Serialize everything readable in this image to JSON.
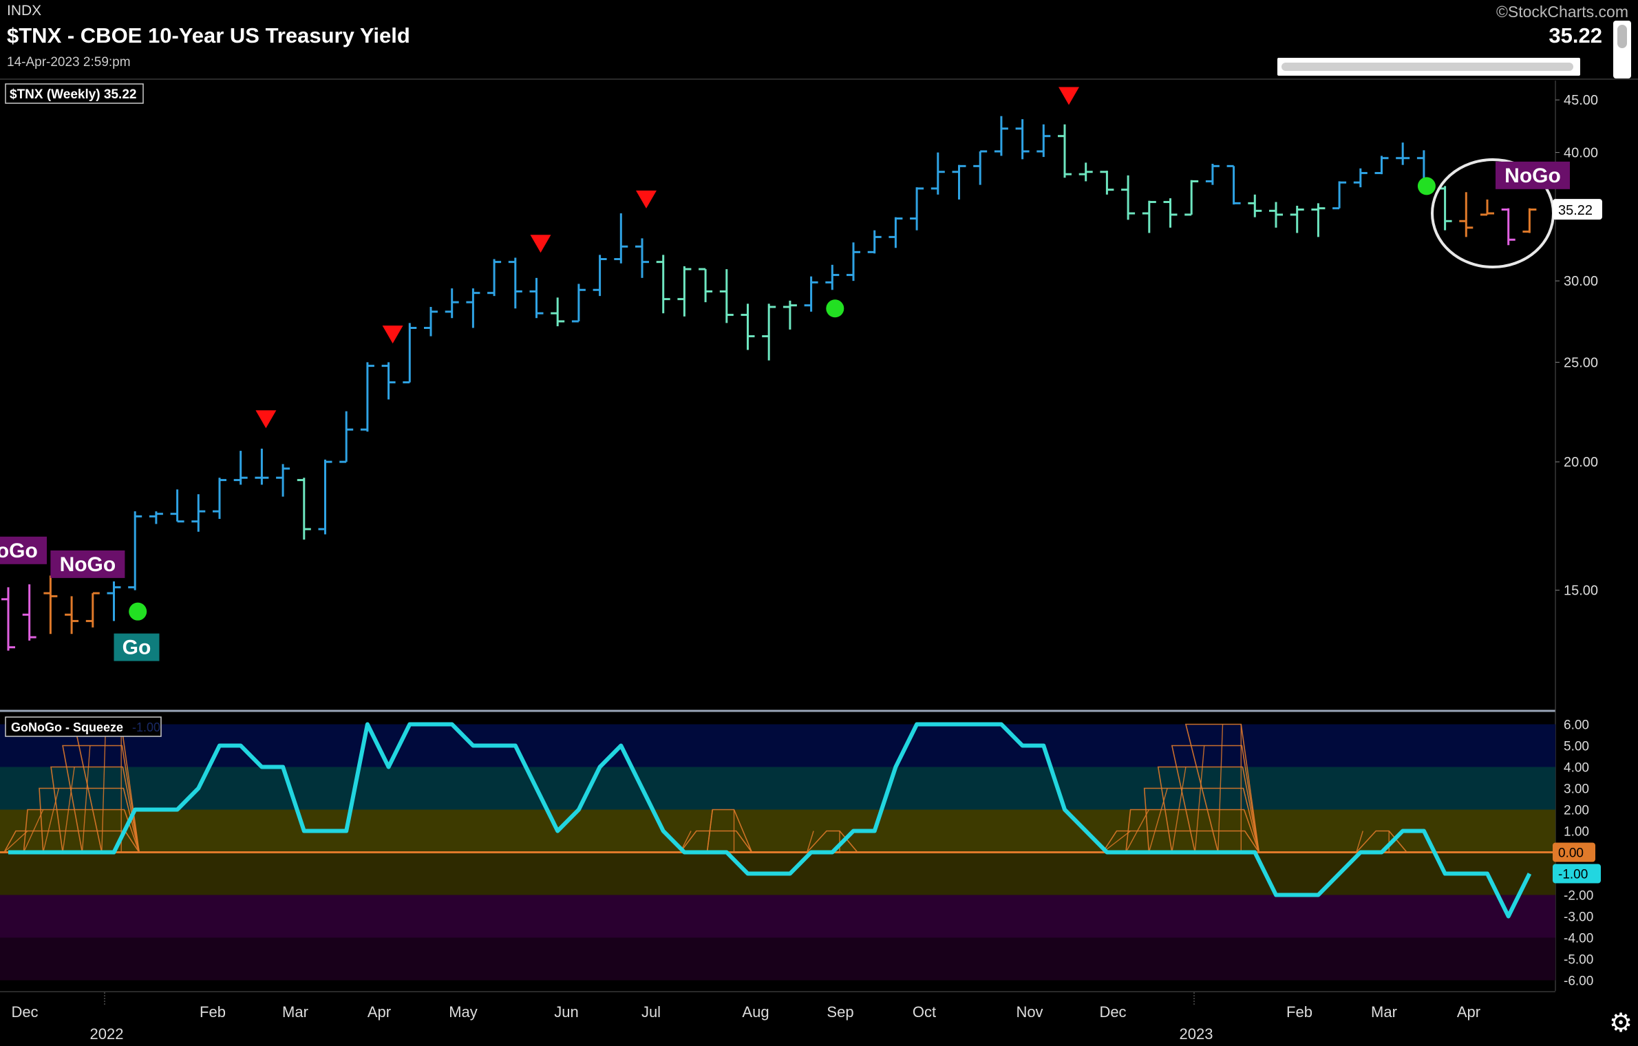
{
  "header": {
    "exchange": "INDX",
    "title": "$TNX - CBOE 10-Year US Treasury Yield",
    "datetime": "14-Apr-2023 2:59:pm",
    "brand": "©StockCharts.com",
    "last_value": "35.22"
  },
  "chart_data": [
    {
      "type": "ohlc",
      "legend": "$TNX (Weekly) 35.22",
      "scale": "log",
      "ylim": [
        11.5,
        47
      ],
      "y_ticks": [
        "45.00",
        "40.00",
        "30.00",
        "25.00",
        "20.00",
        "15.00"
      ],
      "y_tick_values": [
        45,
        40,
        30,
        25,
        20,
        15
      ],
      "last_label": "35.22",
      "x_labels": [
        "Dec",
        "Feb",
        "Mar",
        "Apr",
        "May",
        "Jun",
        "Jul",
        "Aug",
        "Sep",
        "Oct",
        "Nov",
        "Dec",
        "Feb",
        "Mar",
        "Apr"
      ],
      "year_labels": [
        "2022",
        "2023"
      ],
      "colors": {
        "strong_go": "#2fa3e4",
        "weak_go": "#6ee6c0",
        "nogo": "#e060e0",
        "weak_nogo": "#e07a2a"
      },
      "bars": [
        {
          "date": "2021-11-26",
          "o": 14.7,
          "h": 15.1,
          "l": 13.1,
          "c": 13.2,
          "color": "#e060e0"
        },
        {
          "date": "2021-12-03",
          "o": 14.2,
          "h": 15.2,
          "l": 13.4,
          "c": 13.5,
          "color": "#e060e0"
        },
        {
          "date": "2021-12-10",
          "o": 14.9,
          "h": 15.5,
          "l": 13.6,
          "c": 14.8,
          "color": "#e07a2a"
        },
        {
          "date": "2021-12-17",
          "o": 14.2,
          "h": 14.8,
          "l": 13.6,
          "c": 14.0,
          "color": "#e07a2a"
        },
        {
          "date": "2021-12-24",
          "o": 14.0,
          "h": 14.9,
          "l": 13.8,
          "c": 14.9,
          "color": "#e07a2a"
        },
        {
          "date": "2021-12-31",
          "o": 14.9,
          "h": 15.3,
          "l": 14.0,
          "c": 15.1,
          "color": "#2fa3e4"
        },
        {
          "date": "2022-01-07",
          "o": 15.1,
          "h": 17.9,
          "l": 15.0,
          "c": 17.7,
          "color": "#2fa3e4"
        },
        {
          "date": "2022-01-14",
          "o": 17.7,
          "h": 17.9,
          "l": 17.4,
          "c": 17.8,
          "color": "#2fa3e4"
        },
        {
          "date": "2022-01-21",
          "o": 17.8,
          "h": 18.8,
          "l": 17.5,
          "c": 17.5,
          "color": "#2fa3e4"
        },
        {
          "date": "2022-01-28",
          "o": 17.5,
          "h": 18.6,
          "l": 17.1,
          "c": 17.9,
          "color": "#2fa3e4"
        },
        {
          "date": "2022-02-04",
          "o": 17.9,
          "h": 19.3,
          "l": 17.6,
          "c": 19.2,
          "color": "#2fa3e4"
        },
        {
          "date": "2022-02-11",
          "o": 19.2,
          "h": 20.5,
          "l": 19.0,
          "c": 19.3,
          "color": "#2fa3e4"
        },
        {
          "date": "2022-02-18",
          "o": 19.3,
          "h": 20.6,
          "l": 19.0,
          "c": 19.3,
          "color": "#2fa3e4"
        },
        {
          "date": "2022-02-25",
          "o": 19.3,
          "h": 19.9,
          "l": 18.5,
          "c": 19.7,
          "color": "#2fa3e4"
        },
        {
          "date": "2022-03-04",
          "o": 19.2,
          "h": 19.3,
          "l": 16.8,
          "c": 17.2,
          "color": "#6ee6c0"
        },
        {
          "date": "2022-03-11",
          "o": 17.2,
          "h": 20.1,
          "l": 17.0,
          "c": 20.0,
          "color": "#2fa3e4"
        },
        {
          "date": "2022-03-18",
          "o": 20.0,
          "h": 22.4,
          "l": 20.0,
          "c": 21.5,
          "color": "#2fa3e4"
        },
        {
          "date": "2022-03-25",
          "o": 21.5,
          "h": 25.0,
          "l": 21.4,
          "c": 24.8,
          "color": "#2fa3e4"
        },
        {
          "date": "2022-04-01",
          "o": 24.8,
          "h": 25.0,
          "l": 23.0,
          "c": 23.9,
          "color": "#2fa3e4"
        },
        {
          "date": "2022-04-08",
          "o": 23.9,
          "h": 27.3,
          "l": 23.9,
          "c": 27.0,
          "color": "#2fa3e4"
        },
        {
          "date": "2022-04-15",
          "o": 27.0,
          "h": 28.3,
          "l": 26.5,
          "c": 28.0,
          "color": "#2fa3e4"
        },
        {
          "date": "2022-04-22",
          "o": 28.0,
          "h": 29.5,
          "l": 27.6,
          "c": 28.6,
          "color": "#2fa3e4"
        },
        {
          "date": "2022-04-29",
          "o": 28.6,
          "h": 29.5,
          "l": 27.0,
          "c": 29.2,
          "color": "#2fa3e4"
        },
        {
          "date": "2022-05-06",
          "o": 29.2,
          "h": 31.5,
          "l": 29.0,
          "c": 31.3,
          "color": "#2fa3e4"
        },
        {
          "date": "2022-05-13",
          "o": 31.3,
          "h": 31.6,
          "l": 28.2,
          "c": 29.3,
          "color": "#2fa3e4"
        },
        {
          "date": "2022-05-20",
          "o": 29.3,
          "h": 30.2,
          "l": 27.6,
          "c": 27.9,
          "color": "#2fa3e4"
        },
        {
          "date": "2022-05-27",
          "o": 27.9,
          "h": 28.9,
          "l": 27.1,
          "c": 27.4,
          "color": "#6ee6c0"
        },
        {
          "date": "2022-06-03",
          "o": 27.4,
          "h": 29.8,
          "l": 27.4,
          "c": 29.4,
          "color": "#2fa3e4"
        },
        {
          "date": "2022-06-10",
          "o": 29.4,
          "h": 31.8,
          "l": 29.0,
          "c": 31.5,
          "color": "#2fa3e4"
        },
        {
          "date": "2022-06-17",
          "o": 31.5,
          "h": 34.9,
          "l": 31.2,
          "c": 32.4,
          "color": "#2fa3e4"
        },
        {
          "date": "2022-06-24",
          "o": 32.4,
          "h": 33.0,
          "l": 30.2,
          "c": 31.3,
          "color": "#2fa3e4"
        },
        {
          "date": "2022-07-01",
          "o": 31.3,
          "h": 31.8,
          "l": 27.9,
          "c": 28.8,
          "color": "#6ee6c0"
        },
        {
          "date": "2022-07-08",
          "o": 28.8,
          "h": 31.0,
          "l": 27.7,
          "c": 30.8,
          "color": "#6ee6c0"
        },
        {
          "date": "2022-07-15",
          "o": 30.8,
          "h": 30.8,
          "l": 28.6,
          "c": 29.3,
          "color": "#6ee6c0"
        },
        {
          "date": "2022-07-22",
          "o": 29.3,
          "h": 30.8,
          "l": 27.3,
          "c": 27.8,
          "color": "#6ee6c0"
        },
        {
          "date": "2022-07-29",
          "o": 27.8,
          "h": 28.5,
          "l": 25.7,
          "c": 26.5,
          "color": "#6ee6c0"
        },
        {
          "date": "2022-08-05",
          "o": 26.5,
          "h": 28.5,
          "l": 25.1,
          "c": 28.3,
          "color": "#6ee6c0"
        },
        {
          "date": "2022-08-12",
          "o": 28.3,
          "h": 28.7,
          "l": 26.9,
          "c": 28.4,
          "color": "#6ee6c0"
        },
        {
          "date": "2022-08-19",
          "o": 28.4,
          "h": 30.3,
          "l": 28.0,
          "c": 29.9,
          "color": "#2fa3e4"
        },
        {
          "date": "2022-08-26",
          "o": 29.9,
          "h": 31.1,
          "l": 29.4,
          "c": 30.4,
          "color": "#2fa3e4"
        },
        {
          "date": "2022-09-02",
          "o": 30.4,
          "h": 32.7,
          "l": 30.0,
          "c": 32.0,
          "color": "#2fa3e4"
        },
        {
          "date": "2022-09-09",
          "o": 32.0,
          "h": 33.6,
          "l": 31.9,
          "c": 33.1,
          "color": "#2fa3e4"
        },
        {
          "date": "2022-09-16",
          "o": 33.1,
          "h": 34.6,
          "l": 32.3,
          "c": 34.5,
          "color": "#2fa3e4"
        },
        {
          "date": "2022-09-23",
          "o": 34.5,
          "h": 37.0,
          "l": 33.6,
          "c": 36.9,
          "color": "#2fa3e4"
        },
        {
          "date": "2022-09-30",
          "o": 36.9,
          "h": 40.0,
          "l": 36.4,
          "c": 38.3,
          "color": "#2fa3e4"
        },
        {
          "date": "2022-10-07",
          "o": 38.3,
          "h": 38.9,
          "l": 36.0,
          "c": 38.8,
          "color": "#2fa3e4"
        },
        {
          "date": "2022-10-14",
          "o": 38.8,
          "h": 40.1,
          "l": 37.2,
          "c": 40.1,
          "color": "#2fa3e4"
        },
        {
          "date": "2022-10-21",
          "o": 40.1,
          "h": 43.4,
          "l": 39.7,
          "c": 42.2,
          "color": "#2fa3e4"
        },
        {
          "date": "2022-10-28",
          "o": 42.2,
          "h": 43.1,
          "l": 39.4,
          "c": 40.1,
          "color": "#2fa3e4"
        },
        {
          "date": "2022-11-04",
          "o": 40.1,
          "h": 42.6,
          "l": 39.6,
          "c": 41.5,
          "color": "#2fa3e4"
        },
        {
          "date": "2022-11-11",
          "o": 41.5,
          "h": 42.6,
          "l": 37.8,
          "c": 38.1,
          "color": "#6ee6c0"
        },
        {
          "date": "2022-11-18",
          "o": 38.1,
          "h": 39.1,
          "l": 37.5,
          "c": 38.3,
          "color": "#6ee6c0"
        },
        {
          "date": "2022-11-25",
          "o": 38.3,
          "h": 38.4,
          "l": 36.4,
          "c": 36.8,
          "color": "#6ee6c0"
        },
        {
          "date": "2022-12-02",
          "o": 36.8,
          "h": 38.0,
          "l": 34.4,
          "c": 34.9,
          "color": "#6ee6c0"
        },
        {
          "date": "2022-12-09",
          "o": 34.9,
          "h": 35.9,
          "l": 33.4,
          "c": 35.8,
          "color": "#6ee6c0"
        },
        {
          "date": "2022-12-16",
          "o": 35.8,
          "h": 36.1,
          "l": 33.8,
          "c": 34.8,
          "color": "#6ee6c0"
        },
        {
          "date": "2022-12-23",
          "o": 34.8,
          "h": 37.6,
          "l": 34.8,
          "c": 37.5,
          "color": "#6ee6c0"
        },
        {
          "date": "2022-12-30",
          "o": 37.5,
          "h": 39.0,
          "l": 37.2,
          "c": 38.8,
          "color": "#2fa3e4"
        },
        {
          "date": "2023-01-06",
          "o": 38.8,
          "h": 38.8,
          "l": 35.6,
          "c": 35.7,
          "color": "#2fa3e4"
        },
        {
          "date": "2023-01-13",
          "o": 35.7,
          "h": 36.4,
          "l": 34.6,
          "c": 35.1,
          "color": "#6ee6c0"
        },
        {
          "date": "2023-01-20",
          "o": 35.1,
          "h": 35.8,
          "l": 33.8,
          "c": 34.8,
          "color": "#6ee6c0"
        },
        {
          "date": "2023-01-27",
          "o": 34.8,
          "h": 35.5,
          "l": 33.4,
          "c": 35.2,
          "color": "#6ee6c0"
        },
        {
          "date": "2023-02-03",
          "o": 35.2,
          "h": 35.7,
          "l": 33.1,
          "c": 35.3,
          "color": "#6ee6c0"
        },
        {
          "date": "2023-02-10",
          "o": 35.3,
          "h": 37.5,
          "l": 35.3,
          "c": 37.4,
          "color": "#2fa3e4"
        },
        {
          "date": "2023-02-17",
          "o": 37.4,
          "h": 38.6,
          "l": 37.0,
          "c": 38.2,
          "color": "#2fa3e4"
        },
        {
          "date": "2023-02-24",
          "o": 38.2,
          "h": 39.7,
          "l": 38.1,
          "c": 39.5,
          "color": "#2fa3e4"
        },
        {
          "date": "2023-03-03",
          "o": 39.5,
          "h": 40.9,
          "l": 38.9,
          "c": 39.5,
          "color": "#2fa3e4"
        },
        {
          "date": "2023-03-10",
          "o": 39.5,
          "h": 40.2,
          "l": 36.9,
          "c": 36.9,
          "color": "#2fa3e4"
        },
        {
          "date": "2023-03-17",
          "o": 36.9,
          "h": 37.1,
          "l": 33.6,
          "c": 34.3,
          "color": "#6ee6c0"
        },
        {
          "date": "2023-03-24",
          "o": 34.3,
          "h": 36.6,
          "l": 33.1,
          "c": 33.8,
          "color": "#e07a2a"
        },
        {
          "date": "2023-03-31",
          "o": 34.8,
          "h": 36.0,
          "l": 34.8,
          "c": 34.9,
          "color": "#e07a2a"
        },
        {
          "date": "2023-04-07",
          "o": 35.2,
          "h": 35.3,
          "l": 32.5,
          "c": 32.9,
          "color": "#e060e0"
        },
        {
          "date": "2023-04-14",
          "o": 33.5,
          "h": 35.3,
          "l": 33.4,
          "c": 35.2,
          "color": "#e07a2a"
        }
      ],
      "annotations": [
        {
          "text": "NoGo",
          "date": "2021-11-26",
          "value": 16.4
        },
        {
          "text": "NoGo",
          "date": "2021-12-10",
          "value": 15.9
        },
        {
          "text": "Go",
          "date": "2021-12-31",
          "value": 13.2
        },
        {
          "text": "NoGo",
          "date": "2023-03-31",
          "value": 38.0
        }
      ],
      "go_dots": [
        {
          "date": "2022-01-07",
          "value": 14.3
        },
        {
          "date": "2022-08-26",
          "value": 28.2
        },
        {
          "date": "2023-03-10",
          "value": 37.1
        }
      ],
      "nogo_triangles": [
        {
          "date": "2022-02-18",
          "value": 22.0
        },
        {
          "date": "2022-04-01",
          "value": 26.6
        },
        {
          "date": "2022-05-20",
          "value": 32.6
        },
        {
          "date": "2022-06-24",
          "value": 36.0
        },
        {
          "date": "2022-11-11",
          "value": 45.4
        }
      ]
    },
    {
      "type": "line",
      "legend": "GoNoGo - Squeeze",
      "legend_value": "-1.00",
      "ylim": [
        -6.5,
        6.5
      ],
      "y_ticks": [
        "6.00",
        "5.00",
        "4.00",
        "3.00",
        "2.00",
        "1.00",
        "0.00",
        "-1.00",
        "-2.00",
        "-3.00",
        "-4.00",
        "-5.00",
        "-6.00"
      ],
      "y_tick_values": [
        6,
        5,
        4,
        3,
        2,
        1,
        0,
        -1,
        -2,
        -3,
        -4,
        -5,
        -6
      ],
      "zero_label": "0.00",
      "last_label": "-1.00",
      "line_color": "#22d6e0",
      "zero_color": "#e07a2a",
      "bands": [
        {
          "from": 4,
          "to": 6,
          "color": "#000a3c"
        },
        {
          "from": 2,
          "to": 4,
          "color": "#00313a"
        },
        {
          "from": 0,
          "to": 2,
          "color": "#3d3a00"
        },
        {
          "from": -2,
          "to": 0,
          "color": "#2e2a00"
        },
        {
          "from": -4,
          "to": -2,
          "color": "#2a0030"
        },
        {
          "from": -6,
          "to": -4,
          "color": "#18001a"
        }
      ],
      "series": [
        {
          "values": [
            0,
            0,
            0,
            0,
            0,
            0,
            2,
            2,
            2,
            3,
            5,
            5,
            4,
            4,
            1,
            1,
            1,
            6,
            4,
            6,
            6,
            6,
            5,
            5,
            5,
            3,
            1,
            2,
            4,
            5,
            3,
            1,
            0,
            0,
            0,
            -1,
            -1,
            -1,
            0,
            0,
            1,
            1,
            4,
            6,
            6,
            6,
            6,
            6,
            5,
            5,
            2,
            1,
            0,
            0,
            0,
            0,
            0,
            0,
            0,
            0,
            -2,
            -2,
            -2,
            -1,
            0,
            0,
            1,
            1,
            -1,
            -1,
            -1,
            -3,
            -1
          ]
        }
      ],
      "squeeze_zones": [
        {
          "start": "2021-11-26",
          "end": "2022-01-07",
          "peak": 6
        },
        {
          "start": "2022-07-08",
          "end": "2022-07-29",
          "peak": 2
        },
        {
          "start": "2022-08-19",
          "end": "2022-09-02",
          "peak": 1
        },
        {
          "start": "2022-11-25",
          "end": "2023-01-13",
          "peak": 6
        },
        {
          "start": "2023-02-17",
          "end": "2023-03-03",
          "peak": 1
        }
      ]
    }
  ]
}
